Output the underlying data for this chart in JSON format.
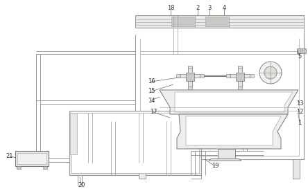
{
  "lc": "#999994",
  "dk": "#777772",
  "lg": "#c8c8c4",
  "mg": "#aaaaaa",
  "figsize": [
    4.44,
    2.73
  ],
  "dpi": 100,
  "labels": [
    [
      "18",
      246,
      12
    ],
    [
      "2",
      285,
      12
    ],
    [
      "3",
      302,
      12
    ],
    [
      "4",
      323,
      12
    ],
    [
      "5",
      432,
      82
    ],
    [
      "1",
      432,
      177
    ],
    [
      "12",
      432,
      162
    ],
    [
      "13",
      432,
      149
    ],
    [
      "14",
      218,
      145
    ],
    [
      "15",
      218,
      132
    ],
    [
      "16",
      218,
      118
    ],
    [
      "17",
      221,
      162
    ],
    [
      "19",
      310,
      240
    ],
    [
      "20",
      118,
      268
    ],
    [
      "21",
      14,
      225
    ]
  ]
}
